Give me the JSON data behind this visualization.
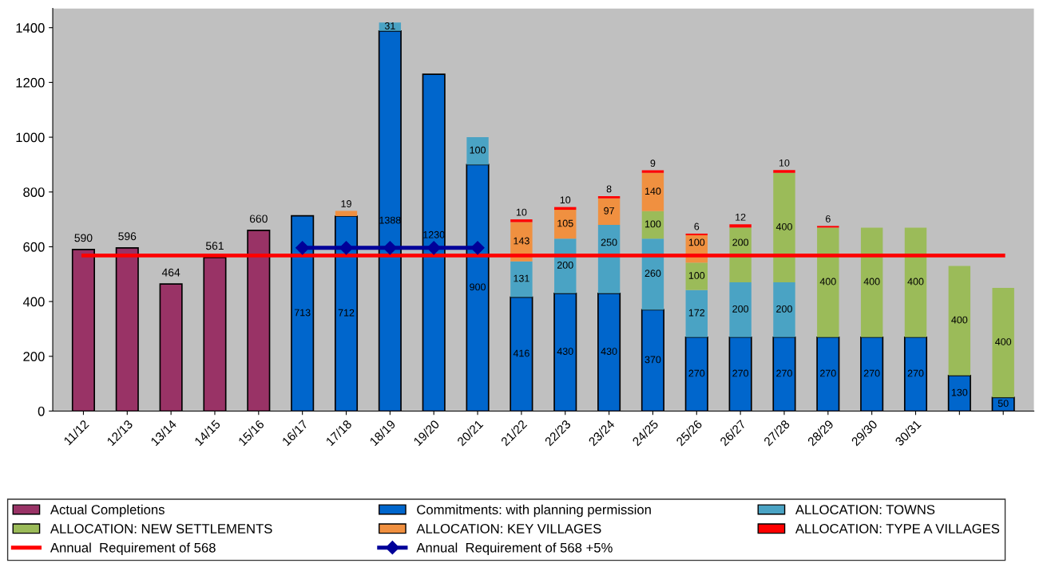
{
  "chart_data": {
    "type": "bar",
    "stacked": true,
    "categories": [
      "11/12",
      "12/13",
      "13/14",
      "14/15",
      "15/16",
      "16/17",
      "17/18",
      "18/19",
      "19/20",
      "20/21",
      "21/22",
      "22/23",
      "23/24",
      "24/25",
      "25/26",
      "26/27",
      "27/28",
      "28/29",
      "29/30",
      "30/31",
      null,
      null
    ],
    "series": [
      {
        "name": "Actual Completions",
        "color": "#993366",
        "values": [
          590,
          596,
          464,
          561,
          660,
          null,
          null,
          null,
          null,
          null,
          null,
          null,
          null,
          null,
          null,
          null,
          null,
          null,
          null,
          null,
          null,
          null
        ],
        "value_labels": [
          "590",
          "596",
          "464",
          "561",
          "660",
          null,
          null,
          null,
          null,
          null,
          null,
          null,
          null,
          null,
          null,
          null,
          null,
          null,
          null,
          null,
          null,
          null
        ]
      },
      {
        "name": "Commitments: with planning permission",
        "color": "#0066cc",
        "values": [
          null,
          null,
          null,
          null,
          null,
          713,
          712,
          1388,
          1230,
          900,
          416,
          430,
          430,
          370,
          270,
          270,
          270,
          270,
          270,
          270,
          130,
          50
        ],
        "value_labels": [
          null,
          null,
          null,
          null,
          null,
          "713",
          "712",
          "1388",
          "1230",
          "900",
          "416",
          "430",
          "430",
          "370",
          "270",
          "270",
          "270",
          "270",
          "270",
          "270",
          "130",
          "50"
        ]
      },
      {
        "name": "ALLOCATION: TOWNS",
        "color": "#4aa3c4",
        "values": [
          null,
          null,
          null,
          null,
          null,
          null,
          null,
          31,
          null,
          100,
          131,
          200,
          250,
          260,
          172,
          200,
          200,
          null,
          null,
          null,
          null,
          null
        ],
        "value_labels": [
          null,
          null,
          null,
          null,
          null,
          null,
          null,
          "31",
          null,
          "100",
          "131",
          "200",
          "250",
          "260",
          "172",
          "200",
          "200",
          null,
          null,
          null,
          null,
          null
        ]
      },
      {
        "name": "ALLOCATION: NEW SETTLEMENTS",
        "color": "#9bbb59",
        "values": [
          null,
          null,
          null,
          null,
          null,
          null,
          null,
          null,
          null,
          null,
          null,
          null,
          null,
          100,
          100,
          200,
          400,
          400,
          400,
          400,
          400,
          400
        ],
        "value_labels": [
          null,
          null,
          null,
          null,
          null,
          null,
          null,
          null,
          null,
          null,
          null,
          null,
          null,
          "100",
          "100",
          "200",
          "400",
          "400",
          "400",
          "400",
          "400",
          "400"
        ]
      },
      {
        "name": "ALLOCATION: KEY VILLAGES",
        "color": "#f09040",
        "values": [
          null,
          null,
          null,
          null,
          null,
          null,
          19,
          null,
          null,
          null,
          143,
          105,
          97,
          140,
          100,
          null,
          null,
          null,
          null,
          null,
          null,
          null
        ],
        "value_labels": [
          null,
          null,
          null,
          null,
          null,
          null,
          "19",
          null,
          null,
          null,
          "143",
          "105",
          "97",
          "140",
          "100",
          null,
          null,
          null,
          null,
          null,
          null,
          null
        ]
      },
      {
        "name": "ALLOCATION: TYPE A VILLAGES",
        "color": "#ff0000",
        "values": [
          null,
          null,
          null,
          null,
          null,
          null,
          null,
          null,
          null,
          null,
          10,
          10,
          8,
          9,
          6,
          12,
          10,
          6,
          null,
          null,
          null,
          null
        ],
        "value_labels": [
          null,
          null,
          null,
          null,
          null,
          null,
          null,
          null,
          null,
          null,
          "10",
          "10",
          "8",
          "9",
          "6",
          "12",
          "10",
          "6",
          null,
          null,
          null,
          null
        ]
      },
      {
        "name": "Annual  Requirement of 568",
        "type": "line",
        "color": "#ff0000",
        "marker": "none",
        "values": [
          568,
          568,
          568,
          568,
          568,
          568,
          568,
          568,
          568,
          568,
          568,
          568,
          568,
          568,
          568,
          568,
          568,
          568,
          568,
          568,
          568,
          568
        ]
      },
      {
        "name": "Annual  Requirement of 568 +5%",
        "type": "line",
        "color": "#000099",
        "marker": "diamond",
        "values": [
          null,
          null,
          null,
          null,
          null,
          596,
          596,
          596,
          596,
          596,
          null,
          null,
          null,
          null,
          null,
          null,
          null,
          null,
          null,
          null,
          null,
          null
        ]
      }
    ],
    "ylim": [
      0,
      1470
    ],
    "yticks": [
      0,
      200,
      400,
      600,
      800,
      1000,
      1200,
      1400
    ],
    "grid": false,
    "legend": "bottom"
  }
}
